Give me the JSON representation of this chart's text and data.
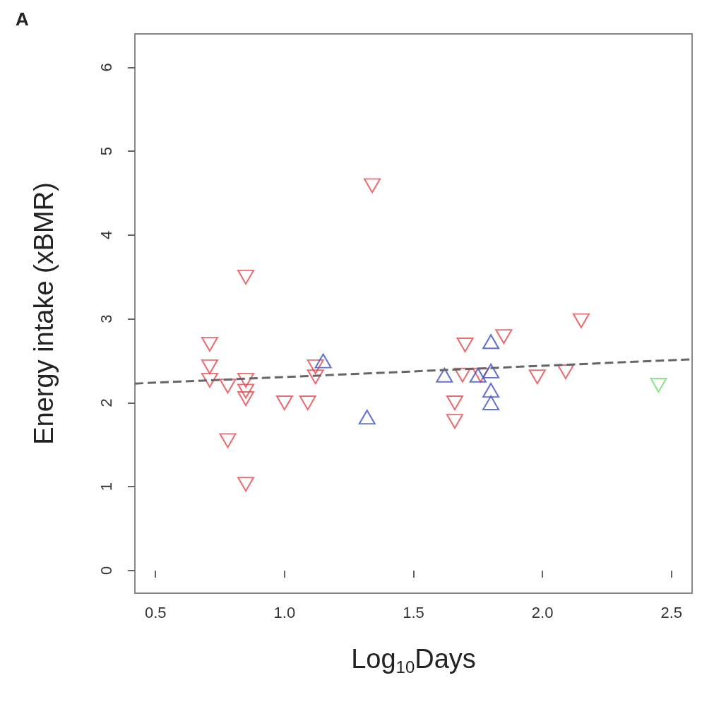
{
  "chart_data": {
    "type": "scatter",
    "xlabel": "Log$_{10}$Days",
    "ylabel": "Energy intake (xBMR)",
    "annotations": [
      "A"
    ],
    "xlim": [
      0.42,
      2.58
    ],
    "ylim": [
      -0.27,
      6.4
    ],
    "xticks": [
      {
        "value": 0.5,
        "label": "0.5"
      },
      {
        "value": 1,
        "label": "1.0"
      },
      {
        "value": 1.5,
        "label": "1.5"
      },
      {
        "value": 2,
        "label": "2.0"
      },
      {
        "value": 2.5,
        "label": "2.5"
      }
    ],
    "yticks": [
      0,
      1,
      2,
      3,
      4,
      5,
      6
    ],
    "grid": false,
    "series": [
      {
        "color": "#e5484f",
        "marker": "triangle-down",
        "x": [
          0.71,
          0.71,
          0.71,
          0.78,
          0.78,
          0.85,
          0.85,
          0.85,
          0.85,
          0.85,
          1.0,
          1.09,
          1.12,
          1.12,
          1.34,
          1.66,
          1.66,
          1.69,
          1.7,
          1.76,
          1.85,
          1.98,
          2.09,
          2.15
        ],
        "values": [
          2.7,
          2.43,
          2.27,
          2.2,
          1.55,
          3.5,
          2.27,
          2.14,
          2.05,
          1.03,
          2.0,
          2.0,
          2.43,
          2.31,
          4.59,
          2.0,
          1.78,
          2.33,
          2.69,
          2.33,
          2.79,
          2.31,
          2.37,
          2.98
        ]
      },
      {
        "color": "#3d4fc9",
        "marker": "triangle",
        "x": [
          1.15,
          1.32,
          1.62,
          1.75,
          1.8,
          1.8,
          1.8,
          1.8
        ],
        "values": [
          2.5,
          1.83,
          2.33,
          2.33,
          2.73,
          2.38,
          2.15,
          2.0
        ]
      },
      {
        "color": "#6fdc6f",
        "marker": "triangle-down",
        "x": [
          2.45
        ],
        "values": [
          2.21
        ]
      },
      {
        "type": "line",
        "color": "#666666",
        "line_style": "dashed",
        "marker": "none",
        "x": [
          0.42,
          2.58
        ],
        "values": [
          2.23,
          2.52
        ]
      }
    ]
  }
}
